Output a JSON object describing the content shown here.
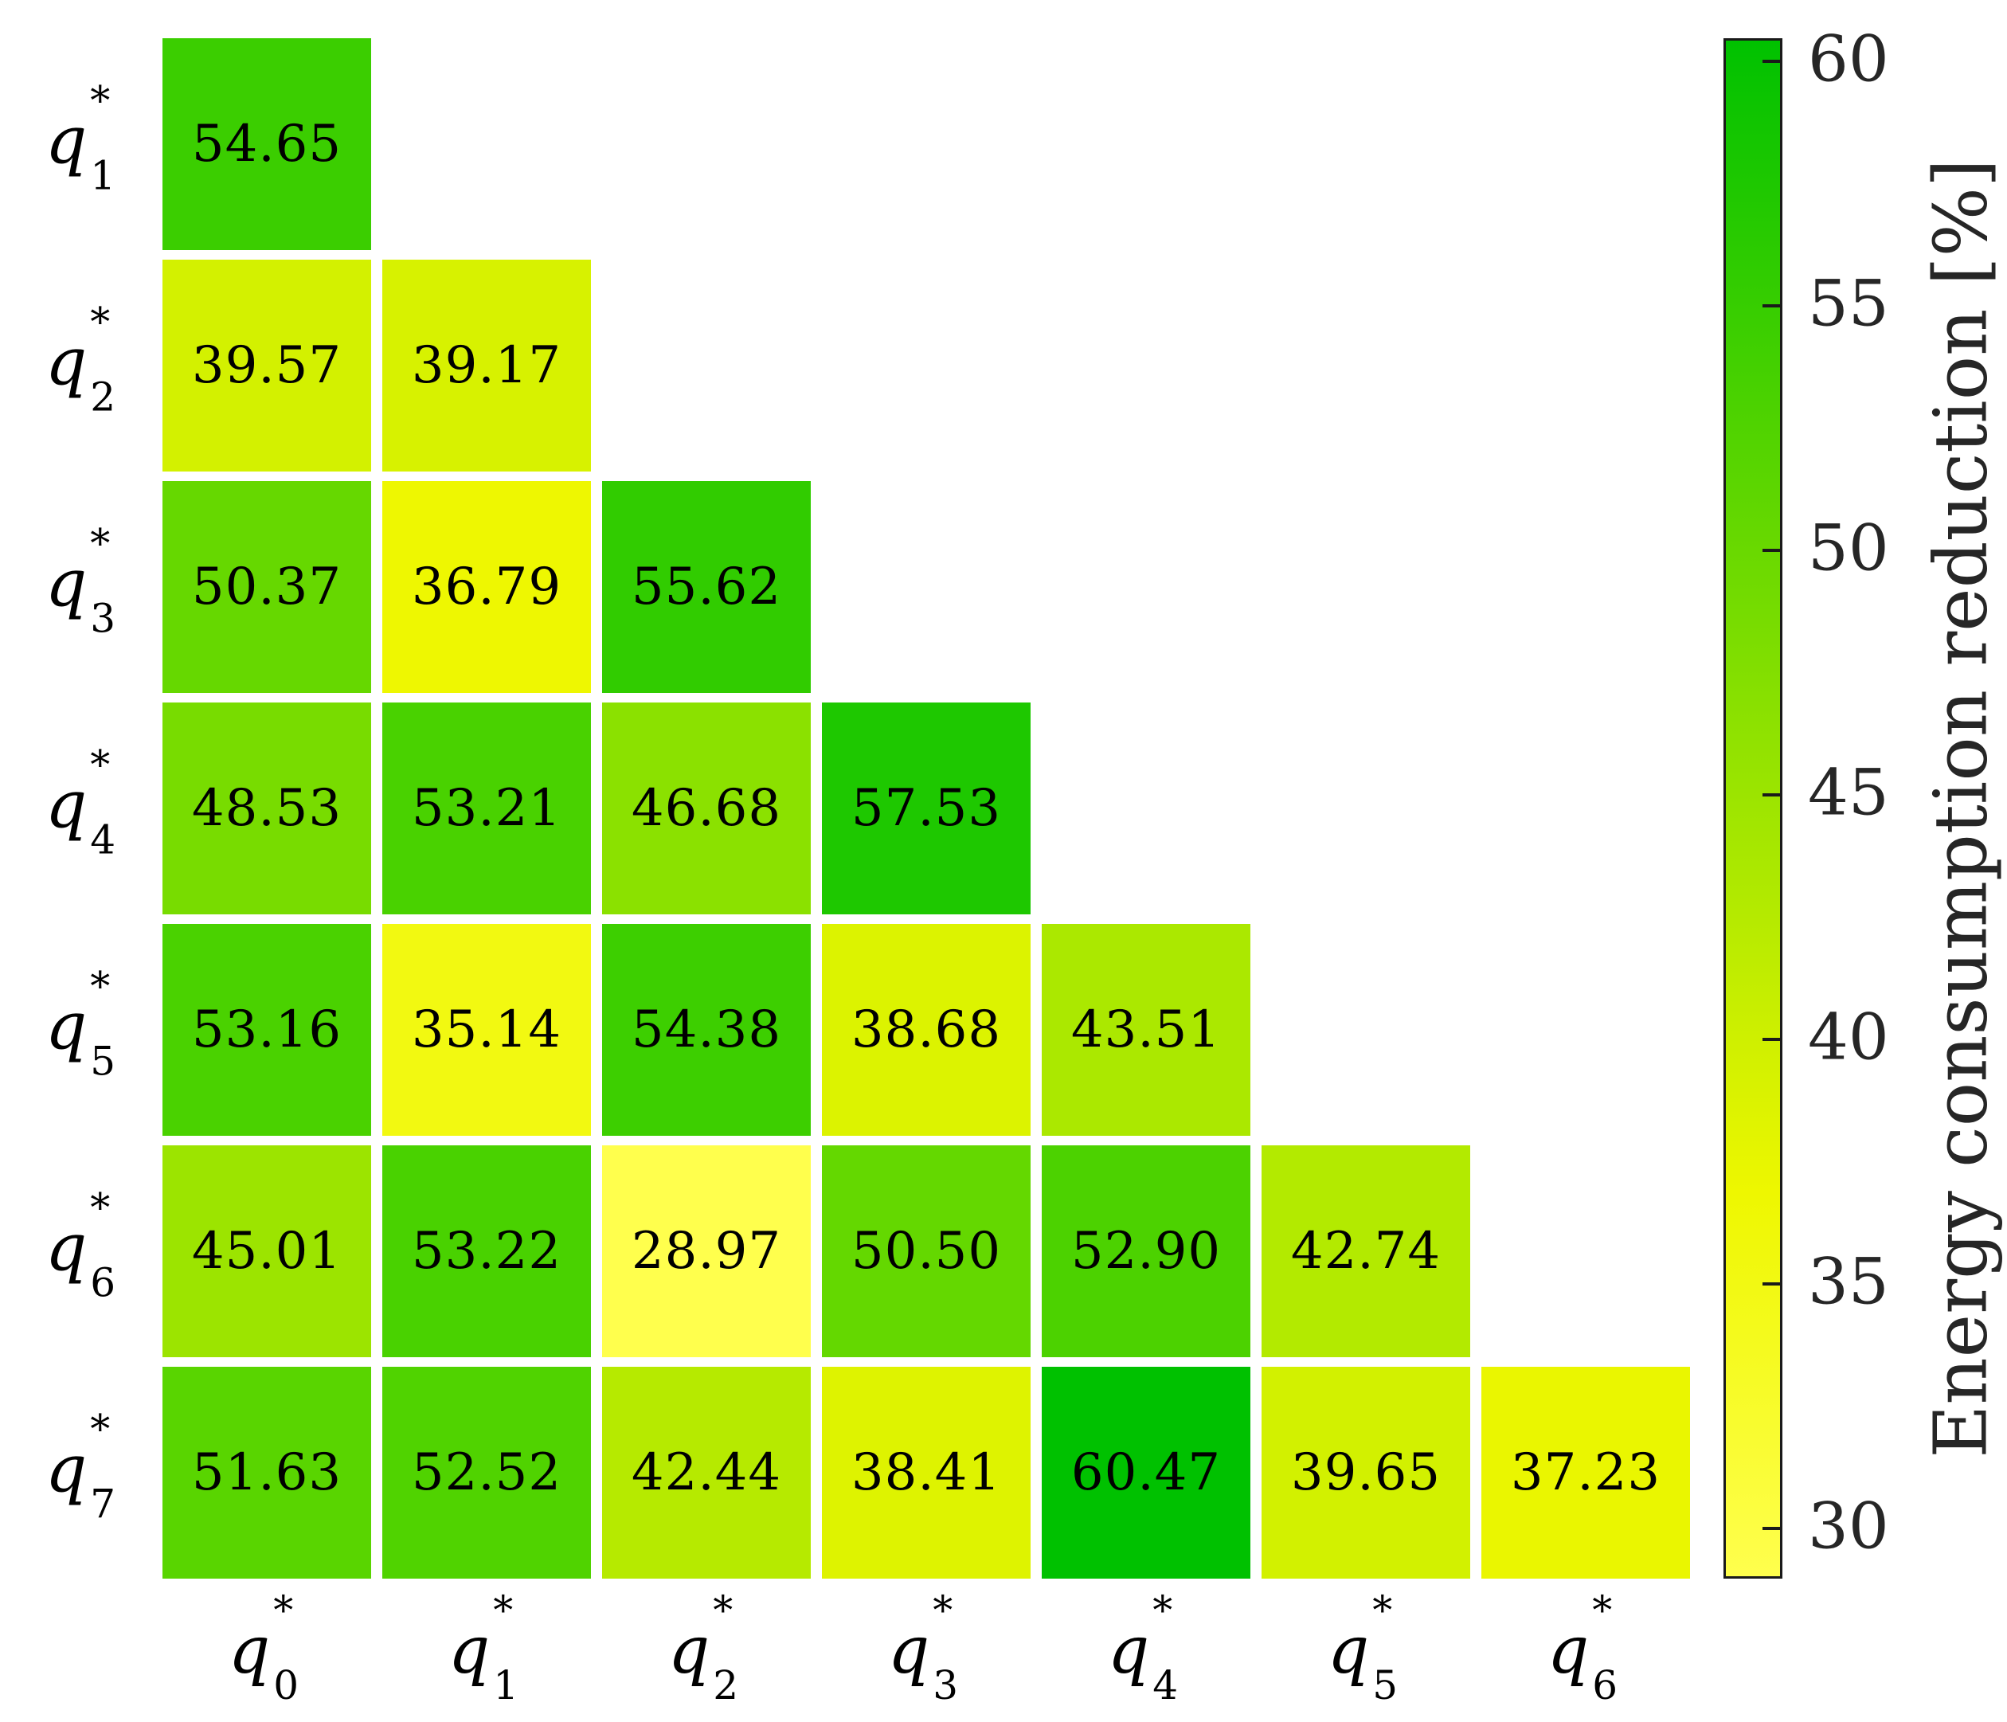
{
  "chart_data": {
    "type": "heatmap",
    "title": "",
    "variable_base": "q",
    "variable_sup": "*",
    "row_indices": [
      "1",
      "2",
      "3",
      "4",
      "5",
      "6",
      "7"
    ],
    "col_indices": [
      "0",
      "1",
      "2",
      "3",
      "4",
      "5",
      "6"
    ],
    "values": [
      [
        54.65
      ],
      [
        39.57,
        39.17
      ],
      [
        50.37,
        36.79,
        55.62
      ],
      [
        48.53,
        53.21,
        46.68,
        57.53
      ],
      [
        53.16,
        35.14,
        54.38,
        38.68,
        43.51
      ],
      [
        45.01,
        53.22,
        28.97,
        50.5,
        52.9,
        42.74
      ],
      [
        51.63,
        52.52,
        42.44,
        38.41,
        60.47,
        39.65,
        37.23
      ]
    ],
    "value_decimals": 2,
    "vmin": 28.97,
    "vmax": 60.47,
    "colormap_stops": [
      {
        "t": 0.0,
        "color": "#FFFF4D"
      },
      {
        "t": 0.25,
        "color": "#EEF700"
      },
      {
        "t": 1.0,
        "color": "#00C100"
      }
    ],
    "colorbar": {
      "label": "Energy consumption reduction [%]",
      "ticks": [
        30,
        35,
        40,
        45,
        50,
        55,
        60
      ]
    },
    "background": "#ffffff",
    "cell_text_color": "#000000",
    "tick_label_color": "#262626",
    "legend_position": "right",
    "grid": false
  }
}
